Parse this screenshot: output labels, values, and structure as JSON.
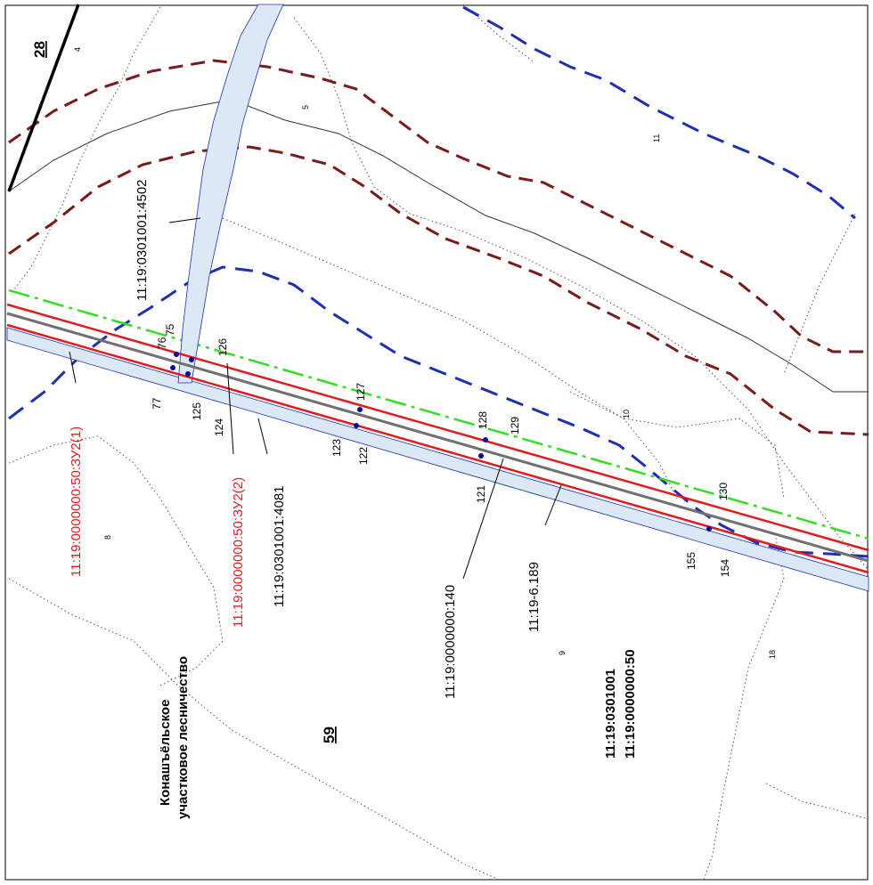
{
  "block_numbers": {
    "top_left": "28",
    "center": "59"
  },
  "forestry_label": {
    "line1": "Конашъёльское",
    "line2": "участковое лесничество"
  },
  "quarter_codes": {
    "line1": "11:19:0301001",
    "line2": "11:19:0000000:50"
  },
  "cadastral_labels": {
    "zu2_1": "11:19:0000000:50:ЗУ2(1)",
    "zu2_2": "11:19:0000000:50:ЗУ2(2)",
    "c4081": "11:19:0301001:4081",
    "c4502": "11:19:0301001:4502",
    "c140": "11:19:0000000:140",
    "c6189": "11:19-6.189"
  },
  "point_labels": [
    "75",
    "76",
    "77",
    "126",
    "125",
    "124",
    "127",
    "123",
    "122",
    "128",
    "129",
    "121",
    "130",
    "155",
    "154"
  ],
  "parcel_numbers": [
    "4",
    "5",
    "11",
    "10",
    "8",
    "9",
    "18"
  ],
  "colors": {
    "boundary_red": "#e31a1c",
    "road_gray": "#707070",
    "water_blue": "#1f2fb4",
    "water_fill": "#dbe9f7",
    "zone_green": "#33dd22",
    "contour_brown": "#7a1a1a",
    "point_blue": "#0a0aa0"
  }
}
